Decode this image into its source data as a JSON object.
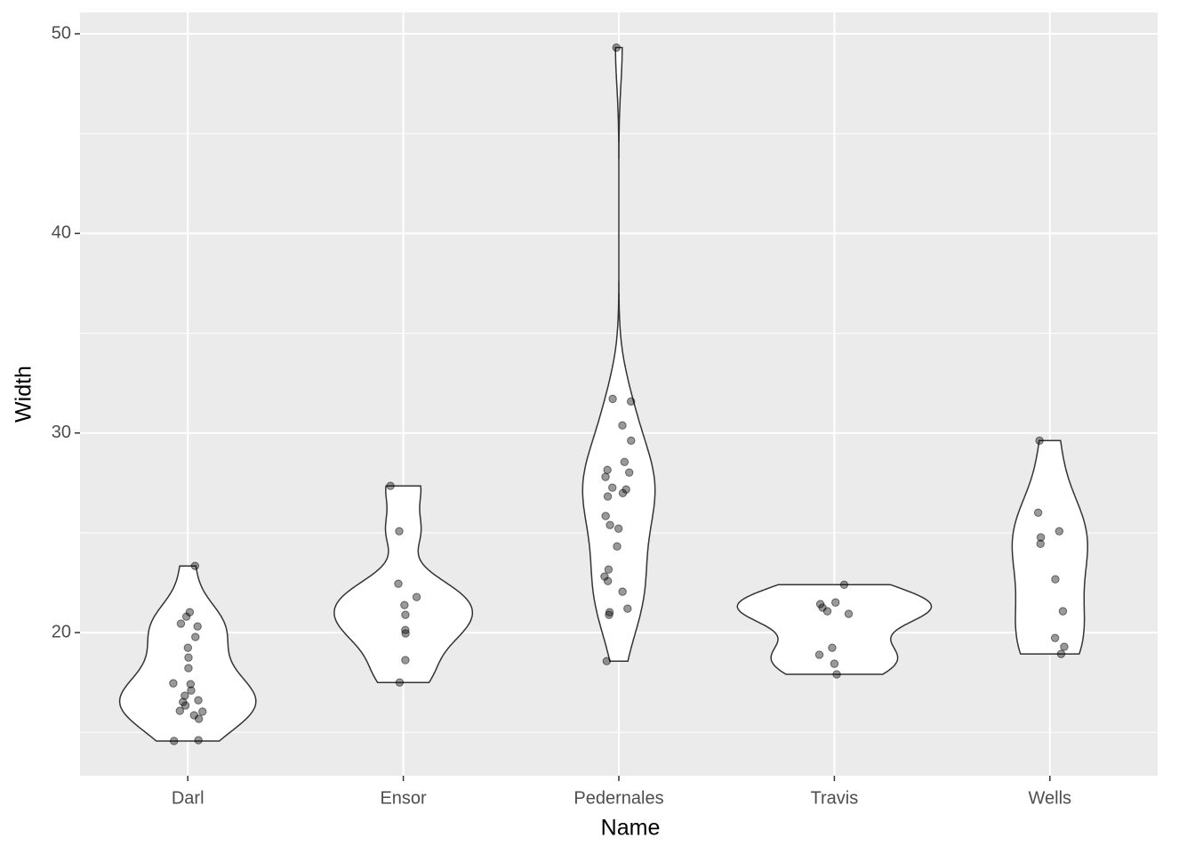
{
  "chart_data": {
    "type": "violin",
    "x_label": "Name",
    "y_label": "Width",
    "categories": [
      "Darl",
      "Ensor",
      "Pedernales",
      "Travis",
      "Wells"
    ],
    "series": [
      {
        "values": [
          23.34,
          21.02,
          20.8,
          20.45,
          20.31,
          19.78,
          19.24,
          18.75,
          18.22,
          17.46,
          17.42,
          17.1,
          16.84,
          16.61,
          16.52,
          16.35,
          16.08,
          16.04,
          15.86,
          15.68,
          14.61,
          14.57
        ]
      },
      {
        "values": [
          27.35,
          25.08,
          22.45,
          21.78,
          21.38,
          20.89,
          20.13,
          19.96,
          18.62,
          17.5
        ]
      },
      {
        "values": [
          49.31,
          31.71,
          31.58,
          30.38,
          29.62,
          28.55,
          28.15,
          28.02,
          27.8,
          27.26,
          27.17,
          26.99,
          26.82,
          25.84,
          25.39,
          25.21,
          24.32,
          23.16,
          22.81,
          22.58,
          22.05,
          21.2,
          21.02,
          20.89,
          18.57
        ]
      },
      {
        "values": [
          22.4,
          21.51,
          21.43,
          21.25,
          21.07,
          20.94,
          19.24,
          18.89,
          18.44,
          17.91
        ]
      },
      {
        "values": [
          29.62,
          26.01,
          25.08,
          24.77,
          24.45,
          22.67,
          21.07,
          19.73,
          19.29,
          18.93
        ]
      }
    ],
    "point_color": "#000000",
    "violin_fill": "#ffffff",
    "violin_stroke": "#333333",
    "ylim": [
      12.83,
      51.07
    ],
    "yticks": [
      20,
      30,
      40,
      50
    ],
    "minor_yticks": [
      15,
      25,
      35,
      45
    ],
    "grid": true
  }
}
